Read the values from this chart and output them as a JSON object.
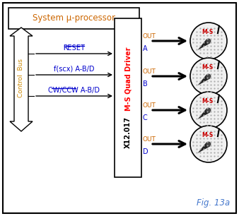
{
  "title": "System μ-processor",
  "fig_label": "Fig. 13a",
  "driver_label": "M-S Quad Driver",
  "driver_sublabel": "X12.017",
  "control_bus_label": "Control  Bus",
  "signals": [
    "RESET",
    "f(scx) A-B/D",
    "CW/CCW A-B/D"
  ],
  "outputs": [
    "A",
    "B",
    "C",
    "D"
  ],
  "out_label": "OUT",
  "gauge_label": "M-S",
  "bg_color": "#ffffff",
  "title_color": "#cc6600",
  "signal_color": "#0000cc",
  "out_color": "#cc6600",
  "gauge_label_color": "#cc0000",
  "output_letter_color": "#0000cc",
  "fig_label_color": "#4477cc",
  "bus_label_color": "#cc8800"
}
